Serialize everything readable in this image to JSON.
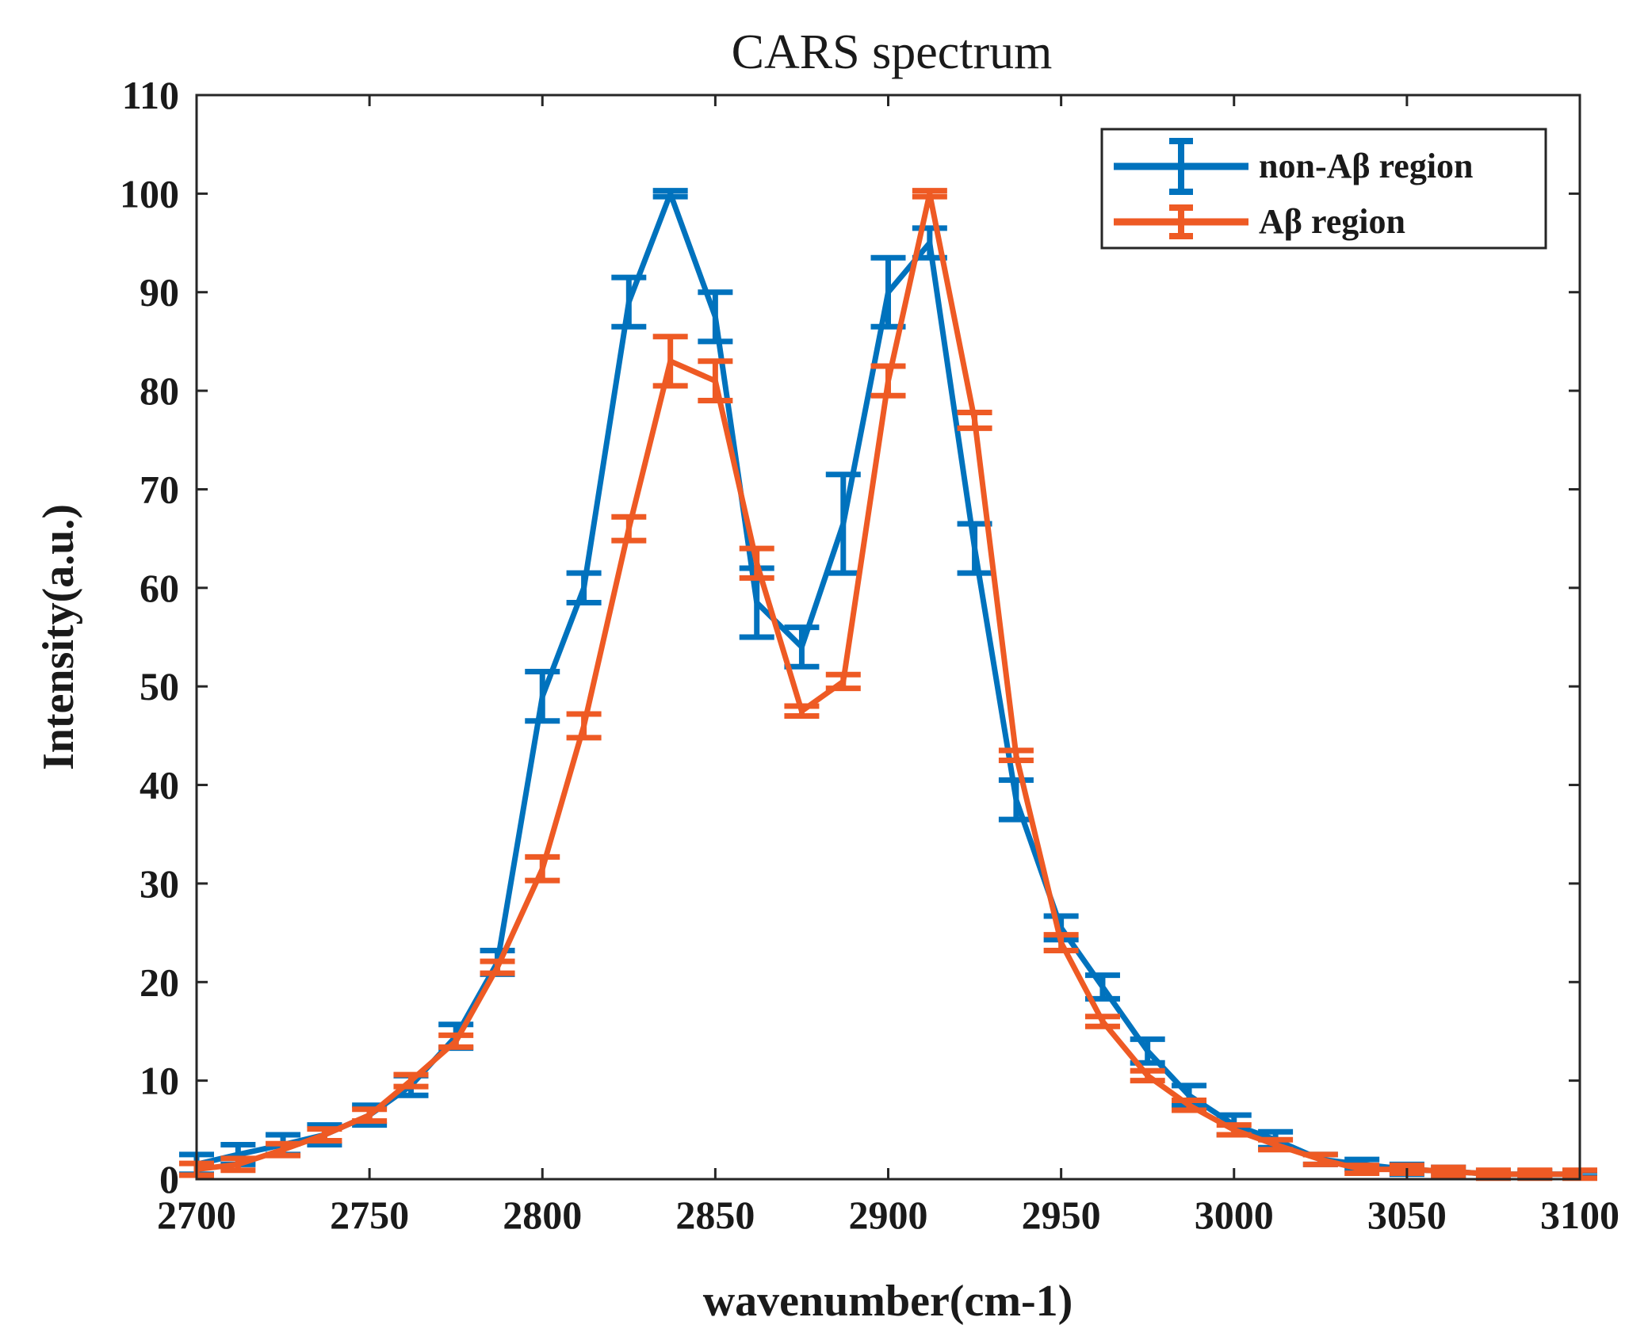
{
  "chart_data": {
    "type": "line",
    "title": "CARS spectrum",
    "xlabel": "wavenumber(cm-1)",
    "ylabel": "Intensity(a.u.)",
    "xlim": [
      2700,
      3100
    ],
    "ylim": [
      0,
      110
    ],
    "xticks": [
      2700,
      2750,
      2800,
      2850,
      2900,
      2950,
      3000,
      3050,
      3100
    ],
    "yticks": [
      0,
      10,
      20,
      30,
      40,
      50,
      60,
      70,
      80,
      90,
      100,
      110
    ],
    "legend_position": "top-right",
    "series": [
      {
        "name": "non-Aβ region",
        "color": "#0072BD",
        "x": [
          2700,
          2712,
          2725,
          2737,
          2750,
          2762,
          2775,
          2787,
          2800,
          2812,
          2825,
          2837,
          2850,
          2862,
          2875,
          2887,
          2900,
          2912,
          2925,
          2937,
          2950,
          2962,
          2975,
          2987,
          3000,
          3012,
          3025,
          3037,
          3050,
          3062,
          3075,
          3087,
          3100
        ],
        "values": [
          1.5,
          2.5,
          3.5,
          4.5,
          6.5,
          9.5,
          14.5,
          22,
          49,
          60,
          89,
          100,
          87.5,
          58.5,
          54,
          66.5,
          90,
          95,
          64,
          38.5,
          25.5,
          19.5,
          13,
          8.5,
          5.5,
          4,
          2,
          1.5,
          1,
          0.8,
          0.5,
          0.5,
          0.5
        ],
        "errors": [
          1,
          1,
          1,
          1,
          1,
          1,
          1.2,
          1.2,
          2.5,
          1.5,
          2.5,
          0.3,
          2.5,
          3.5,
          2,
          5,
          3.5,
          1.5,
          2.5,
          2,
          1.2,
          1.2,
          1.2,
          1,
          1,
          0.8,
          0.5,
          0.5,
          0.5,
          0.4,
          0.3,
          0.3,
          0.3
        ]
      },
      {
        "name": "Aβ region",
        "color": "#EE5A24",
        "x": [
          2700,
          2712,
          2725,
          2737,
          2750,
          2762,
          2775,
          2787,
          2800,
          2812,
          2825,
          2837,
          2850,
          2862,
          2875,
          2887,
          2900,
          2912,
          2925,
          2937,
          2950,
          2962,
          2975,
          2987,
          3000,
          3012,
          3025,
          3037,
          3050,
          3062,
          3075,
          3087,
          3100
        ],
        "values": [
          1,
          1.5,
          3,
          4.5,
          6.5,
          10,
          14,
          21.5,
          31.5,
          46,
          66,
          83,
          81,
          62.5,
          47.5,
          50.5,
          81,
          100,
          77,
          43,
          24,
          16,
          10.5,
          7.5,
          5,
          3.5,
          2,
          1,
          1,
          0.8,
          0.5,
          0.5,
          0.5
        ],
        "errors": [
          0.6,
          0.6,
          0.6,
          0.6,
          0.6,
          0.6,
          0.6,
          0.6,
          1.2,
          1.2,
          1.2,
          2.5,
          2,
          1.5,
          0.5,
          0.7,
          1.5,
          0.3,
          0.8,
          0.5,
          0.8,
          0.5,
          0.5,
          0.5,
          0.5,
          0.5,
          0.5,
          0.4,
          0.4,
          0.4,
          0.4,
          0.4,
          0.4
        ]
      }
    ]
  }
}
